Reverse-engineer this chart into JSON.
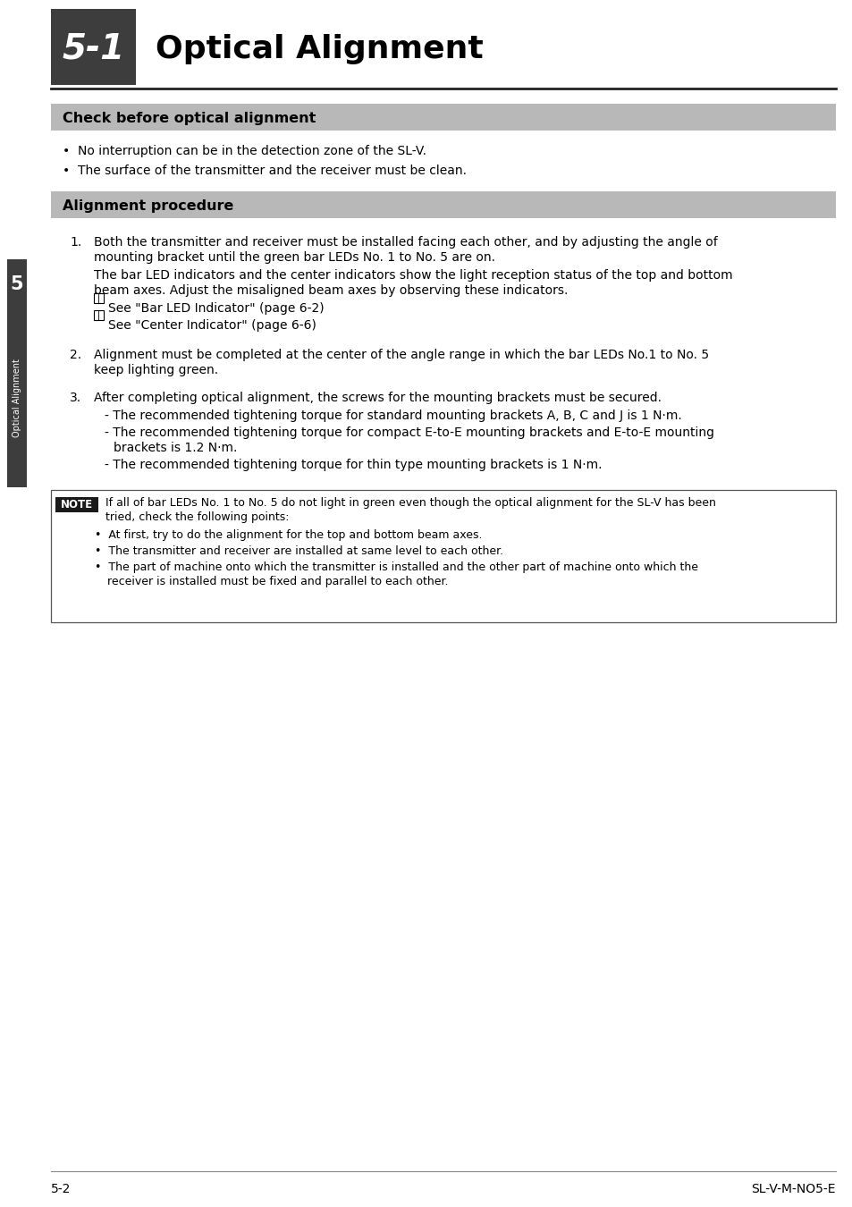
{
  "page_bg": "#ffffff",
  "header_bg": "#3d3d3d",
  "section_bg": "#b8b8b8",
  "sidebar_bg": "#3d3d3d",
  "chapter_number": "5-1",
  "chapter_title": "Optical Alignment",
  "section1_title": "Check before optical alignment",
  "section1_bullets": [
    "No interruption can be in the detection zone of the SL-V.",
    "The surface of the transmitter and the receiver must be clean."
  ],
  "section2_title": "Alignment procedure",
  "step1_line1": "Both the transmitter and receiver must be installed facing each other, and by adjusting the angle of",
  "step1_line2": "mounting bracket until the green bar LEDs No. 1 to No. 5 are on.",
  "step1_sub_line1": "The bar LED indicators and the center indicators show the light reception status of the top and bottom",
  "step1_sub_line2": "beam axes. Adjust the misaligned beam axes by observing these indicators.",
  "step1_ref1": "See \"Bar LED Indicator\" (page 6-2)",
  "step1_ref2": "See \"Center Indicator\" (page 6-6)",
  "step2_line1": "Alignment must be completed at the center of the angle range in which the bar LEDs No.1 to No. 5",
  "step2_line2": "keep lighting green.",
  "step3_main": "After completing optical alignment, the screws for the mounting brackets must be secured.",
  "step3_sub1": "- The recommended tightening torque for standard mounting brackets A, B, C and J is 1 N·m.",
  "step3_sub2a": "- The recommended tightening torque for compact E-to-E mounting brackets and E-to-E mounting",
  "step3_sub2b": "  brackets is 1.2 N·m.",
  "step3_sub3": "- The recommended tightening torque for thin type mounting brackets is 1 N·m.",
  "note_label": "NOTE",
  "note_main1": "If all of bar LEDs No. 1 to No. 5 do not light in green even though the optical alignment for the SL-V has been",
  "note_main2": "tried, check the following points:",
  "note_bullet1": "At first, try to do the alignment for the top and bottom beam axes.",
  "note_bullet2": "The transmitter and receiver are installed at same level to each other.",
  "note_bullet3a": "The part of machine onto which the transmitter is installed and the other part of machine onto which the",
  "note_bullet3b": "receiver is installed must be fixed and parallel to each other.",
  "footer_left": "5-2",
  "footer_right": "SL-V-M-NO5-E",
  "chapter_tab": "5",
  "sidebar_label": "Optical Alignment"
}
